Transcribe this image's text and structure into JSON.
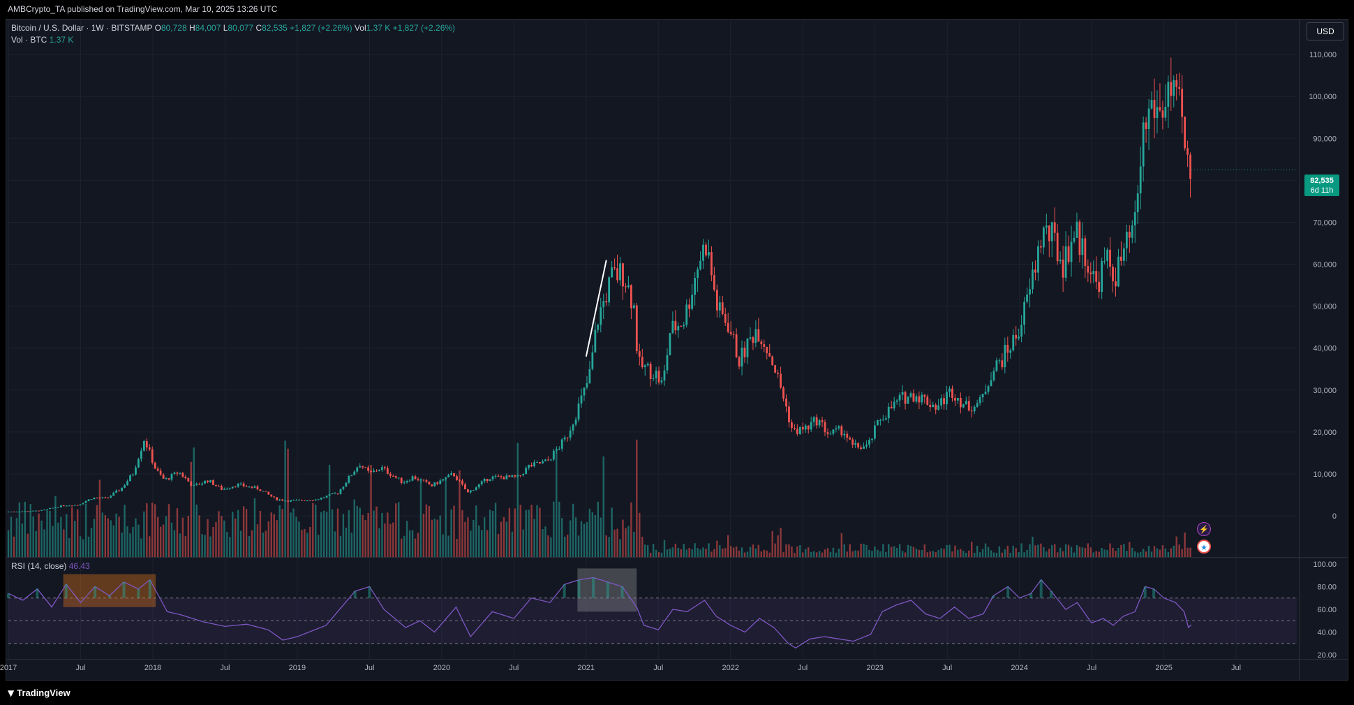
{
  "header": {
    "published": "AMBCrypto_TA published on TradingView.com, Mar 10, 2025 13:26 UTC"
  },
  "legend": {
    "symbol": "Bitcoin / U.S. Dollar · 1W · BITSTAMP",
    "o_label": "O",
    "o_value": "80,728",
    "h_label": "H",
    "h_value": "84,007",
    "l_label": "L",
    "l_value": "80,077",
    "c_label": "C",
    "c_value": "82,535",
    "change": "+1,827 (+2.26%)",
    "vol_label": "Vol",
    "vol_value": "1.37 K",
    "vol_change": "+1,827 (+2.26%)",
    "vol_title": "Vol · BTC",
    "vol_title_value": "1.37 K",
    "rsi_title": "RSI (14, close)",
    "rsi_value": "46.43"
  },
  "currency_button": "USD",
  "last_price": {
    "price": "82,535",
    "countdown": "6d 11h"
  },
  "footer": {
    "brand": "TradingView"
  },
  "colors": {
    "up": "#26a69a",
    "down": "#ef5350",
    "rsi": "#7e57c2",
    "background": "#131722"
  },
  "chart_data": {
    "type": "candlestick",
    "price_axis": {
      "ticks": [
        0,
        10000,
        20000,
        30000,
        40000,
        50000,
        60000,
        70000,
        80000,
        90000,
        100000,
        110000
      ],
      "labels": [
        "0",
        "10,000",
        "20,000",
        "30,000",
        "40,000",
        "50,000",
        "60,000",
        "70,000",
        "80,000",
        "90,000",
        "100,000",
        "110,000"
      ]
    },
    "rsi_axis": {
      "ticks": [
        20,
        40,
        60,
        80,
        100
      ],
      "labels": [
        "20.00",
        "40.00",
        "60.00",
        "80.00",
        "100.00"
      ],
      "bands": [
        30,
        50,
        70
      ]
    },
    "time_axis": {
      "labels": [
        "2017",
        "Jul",
        "2018",
        "Jul",
        "2019",
        "Jul",
        "2020",
        "Jul",
        "2021",
        "Jul",
        "2022",
        "Jul",
        "2023",
        "Jul",
        "2024",
        "Jul",
        "2025",
        "Jul"
      ],
      "positions": [
        2017.0,
        2017.5,
        2018.0,
        2018.5,
        2019.0,
        2019.5,
        2020.0,
        2020.5,
        2021.0,
        2021.5,
        2022.0,
        2022.5,
        2023.0,
        2023.5,
        2024.0,
        2024.5,
        2025.0,
        2025.5
      ]
    },
    "price_path": [
      [
        2017.0,
        1000
      ],
      [
        2017.15,
        1100
      ],
      [
        2017.25,
        1300
      ],
      [
        2017.4,
        2500
      ],
      [
        2017.5,
        2600
      ],
      [
        2017.6,
        4300
      ],
      [
        2017.7,
        4200
      ],
      [
        2017.8,
        6500
      ],
      [
        2017.88,
        10000
      ],
      [
        2017.96,
        18500
      ],
      [
        2018.04,
        11000
      ],
      [
        2018.1,
        8500
      ],
      [
        2018.2,
        10500
      ],
      [
        2018.3,
        7000
      ],
      [
        2018.4,
        8500
      ],
      [
        2018.5,
        6300
      ],
      [
        2018.6,
        7500
      ],
      [
        2018.75,
        6500
      ],
      [
        2018.87,
        4000
      ],
      [
        2018.95,
        3600
      ],
      [
        2019.15,
        3900
      ],
      [
        2019.3,
        5500
      ],
      [
        2019.45,
        12500
      ],
      [
        2019.52,
        10000
      ],
      [
        2019.6,
        11500
      ],
      [
        2019.75,
        8000
      ],
      [
        2019.82,
        9300
      ],
      [
        2019.95,
        7200
      ],
      [
        2020.1,
        10000
      ],
      [
        2020.2,
        5500
      ],
      [
        2020.35,
        9200
      ],
      [
        2020.55,
        9200
      ],
      [
        2020.62,
        11800
      ],
      [
        2020.75,
        13000
      ],
      [
        2020.88,
        18500
      ],
      [
        2021.0,
        29000
      ],
      [
        2021.04,
        33000
      ],
      [
        2021.1,
        47000
      ],
      [
        2021.2,
        57000
      ],
      [
        2021.28,
        58000
      ],
      [
        2021.35,
        50000
      ],
      [
        2021.38,
        36000
      ],
      [
        2021.5,
        34000
      ],
      [
        2021.55,
        31000
      ],
      [
        2021.6,
        44000
      ],
      [
        2021.7,
        47000
      ],
      [
        2021.8,
        61000
      ],
      [
        2021.85,
        65000
      ],
      [
        2021.93,
        49000
      ],
      [
        2022.0,
        46000
      ],
      [
        2022.08,
        37000
      ],
      [
        2022.2,
        45000
      ],
      [
        2022.3,
        38000
      ],
      [
        2022.38,
        29000
      ],
      [
        2022.45,
        20000
      ],
      [
        2022.55,
        21000
      ],
      [
        2022.62,
        23000
      ],
      [
        2022.7,
        19500
      ],
      [
        2022.8,
        20500
      ],
      [
        2022.86,
        16500
      ],
      [
        2022.97,
        16500
      ],
      [
        2023.05,
        23000
      ],
      [
        2023.2,
        28000
      ],
      [
        2023.3,
        29000
      ],
      [
        2023.45,
        26000
      ],
      [
        2023.55,
        30000
      ],
      [
        2023.65,
        26000
      ],
      [
        2023.75,
        27000
      ],
      [
        2023.82,
        34000
      ],
      [
        2023.9,
        37500
      ],
      [
        2024.0,
        43000
      ],
      [
        2024.08,
        52000
      ],
      [
        2024.18,
        68000
      ],
      [
        2024.25,
        66000
      ],
      [
        2024.32,
        60000
      ],
      [
        2024.4,
        68000
      ],
      [
        2024.48,
        62000
      ],
      [
        2024.55,
        55000
      ],
      [
        2024.62,
        61000
      ],
      [
        2024.68,
        57000
      ],
      [
        2024.75,
        63000
      ],
      [
        2024.82,
        69000
      ],
      [
        2024.87,
        90000
      ],
      [
        2024.93,
        98000
      ],
      [
        2025.0,
        96000
      ],
      [
        2025.05,
        102000
      ],
      [
        2025.1,
        97000
      ],
      [
        2025.14,
        96000
      ],
      [
        2025.17,
        84000
      ],
      [
        2025.19,
        82535
      ]
    ],
    "rsi_path": [
      [
        2017.0,
        74
      ],
      [
        2017.1,
        68
      ],
      [
        2017.2,
        78
      ],
      [
        2017.3,
        62
      ],
      [
        2017.4,
        82
      ],
      [
        2017.5,
        66
      ],
      [
        2017.6,
        80
      ],
      [
        2017.7,
        72
      ],
      [
        2017.8,
        84
      ],
      [
        2017.9,
        78
      ],
      [
        2017.98,
        86
      ],
      [
        2018.1,
        58
      ],
      [
        2018.2,
        55
      ],
      [
        2018.35,
        49
      ],
      [
        2018.5,
        45
      ],
      [
        2018.65,
        47
      ],
      [
        2018.8,
        42
      ],
      [
        2018.9,
        33
      ],
      [
        2019.0,
        36
      ],
      [
        2019.2,
        46
      ],
      [
        2019.4,
        76
      ],
      [
        2019.5,
        80
      ],
      [
        2019.6,
        60
      ],
      [
        2019.75,
        44
      ],
      [
        2019.85,
        50
      ],
      [
        2019.95,
        40
      ],
      [
        2020.1,
        62
      ],
      [
        2020.2,
        36
      ],
      [
        2020.35,
        58
      ],
      [
        2020.5,
        52
      ],
      [
        2020.62,
        70
      ],
      [
        2020.75,
        66
      ],
      [
        2020.85,
        82
      ],
      [
        2020.95,
        86
      ],
      [
        2021.05,
        88
      ],
      [
        2021.15,
        84
      ],
      [
        2021.25,
        80
      ],
      [
        2021.35,
        62
      ],
      [
        2021.4,
        46
      ],
      [
        2021.5,
        42
      ],
      [
        2021.6,
        60
      ],
      [
        2021.7,
        58
      ],
      [
        2021.82,
        68
      ],
      [
        2021.9,
        54
      ],
      [
        2022.0,
        46
      ],
      [
        2022.1,
        40
      ],
      [
        2022.2,
        52
      ],
      [
        2022.3,
        44
      ],
      [
        2022.4,
        30
      ],
      [
        2022.45,
        26
      ],
      [
        2022.55,
        34
      ],
      [
        2022.65,
        36
      ],
      [
        2022.75,
        34
      ],
      [
        2022.85,
        32
      ],
      [
        2022.97,
        38
      ],
      [
        2023.05,
        58
      ],
      [
        2023.15,
        64
      ],
      [
        2023.25,
        68
      ],
      [
        2023.35,
        56
      ],
      [
        2023.45,
        52
      ],
      [
        2023.55,
        62
      ],
      [
        2023.65,
        52
      ],
      [
        2023.75,
        56
      ],
      [
        2023.82,
        72
      ],
      [
        2023.92,
        80
      ],
      [
        2024.0,
        70
      ],
      [
        2024.08,
        74
      ],
      [
        2024.15,
        86
      ],
      [
        2024.22,
        76
      ],
      [
        2024.32,
        60
      ],
      [
        2024.4,
        66
      ],
      [
        2024.5,
        48
      ],
      [
        2024.58,
        52
      ],
      [
        2024.65,
        46
      ],
      [
        2024.72,
        54
      ],
      [
        2024.8,
        58
      ],
      [
        2024.87,
        80
      ],
      [
        2024.93,
        78
      ],
      [
        2025.0,
        70
      ],
      [
        2025.08,
        66
      ],
      [
        2025.14,
        58
      ],
      [
        2025.17,
        44
      ],
      [
        2025.19,
        46.43
      ]
    ],
    "annotations": {
      "trend_line": {
        "from": [
          2021.0,
          38000
        ],
        "to": [
          2021.14,
          61000
        ]
      },
      "highlight_boxes": [
        {
          "x0": 2017.38,
          "x1": 2018.02,
          "y0": 62,
          "y1": 91,
          "color": "#f57f17"
        },
        {
          "x0": 2020.94,
          "x1": 2021.35,
          "y0": 58,
          "y1": 96,
          "color": "#9e9e9e"
        }
      ]
    },
    "grid": true,
    "legend_position": "top-left"
  }
}
